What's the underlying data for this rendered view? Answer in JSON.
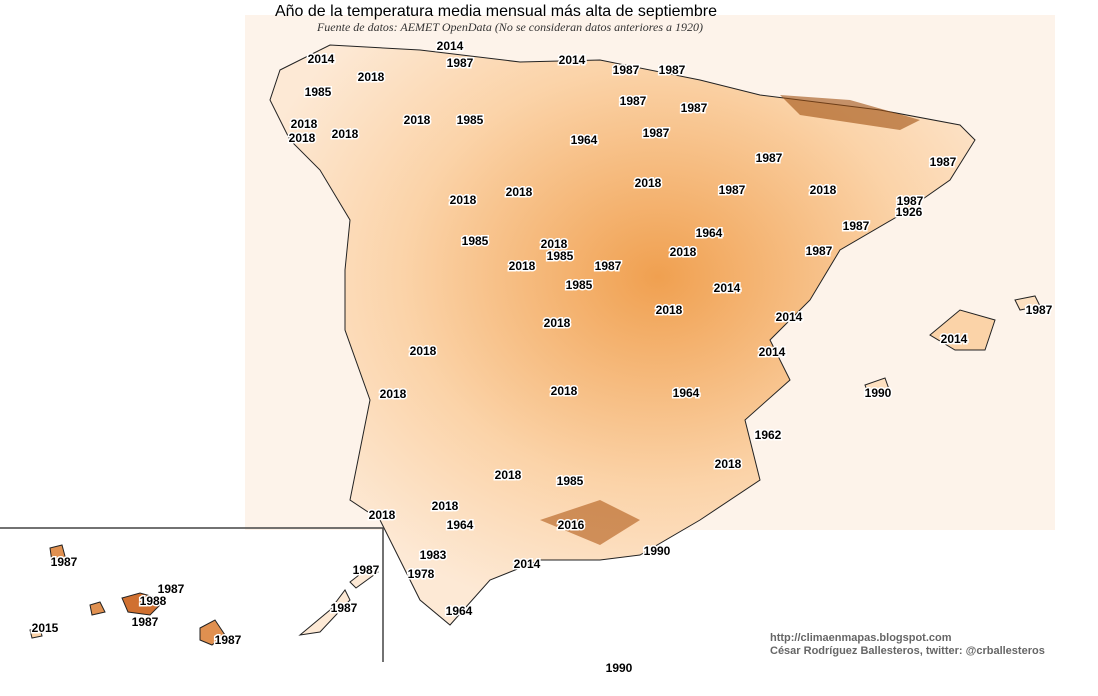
{
  "header": {
    "title": "Año de la temperatura media mensual más alta de septiembre",
    "subtitle": "Fuente de datos: AEMET OpenData (No se consideran datos anteriores a 1920)"
  },
  "labels": [
    "2014",
    "2014",
    "1987",
    "2014",
    "1987",
    "1987",
    "2018",
    "1985",
    "1987",
    "1987",
    "2018",
    "1985",
    "2018",
    "2018",
    "2018",
    "1987",
    "1964",
    "1987",
    "1987",
    "2018",
    "1987",
    "2018",
    "2018",
    "2018",
    "1987",
    "1926",
    "1987",
    "1964",
    "1985",
    "2018",
    "1985",
    "2018",
    "1987",
    "2018",
    "1987",
    "1985",
    "2014",
    "2018",
    "1987",
    "2014",
    "2018",
    "2014",
    "2018",
    "2014",
    "2018",
    "1964",
    "1990",
    "2018",
    "1962",
    "2018",
    "2018",
    "1985",
    "2018",
    "2018",
    "1964",
    "2016",
    "1990",
    "1987",
    "1983",
    "2014",
    "1987",
    "1978",
    "1987",
    "1988",
    "1987",
    "1987",
    "2015",
    "1987",
    "1964",
    "1990"
  ],
  "credits": [
    "http://climaenmapas.blogspot.com",
    "César Rodríguez Ballesteros, twitter: @crballesteros"
  ]
}
